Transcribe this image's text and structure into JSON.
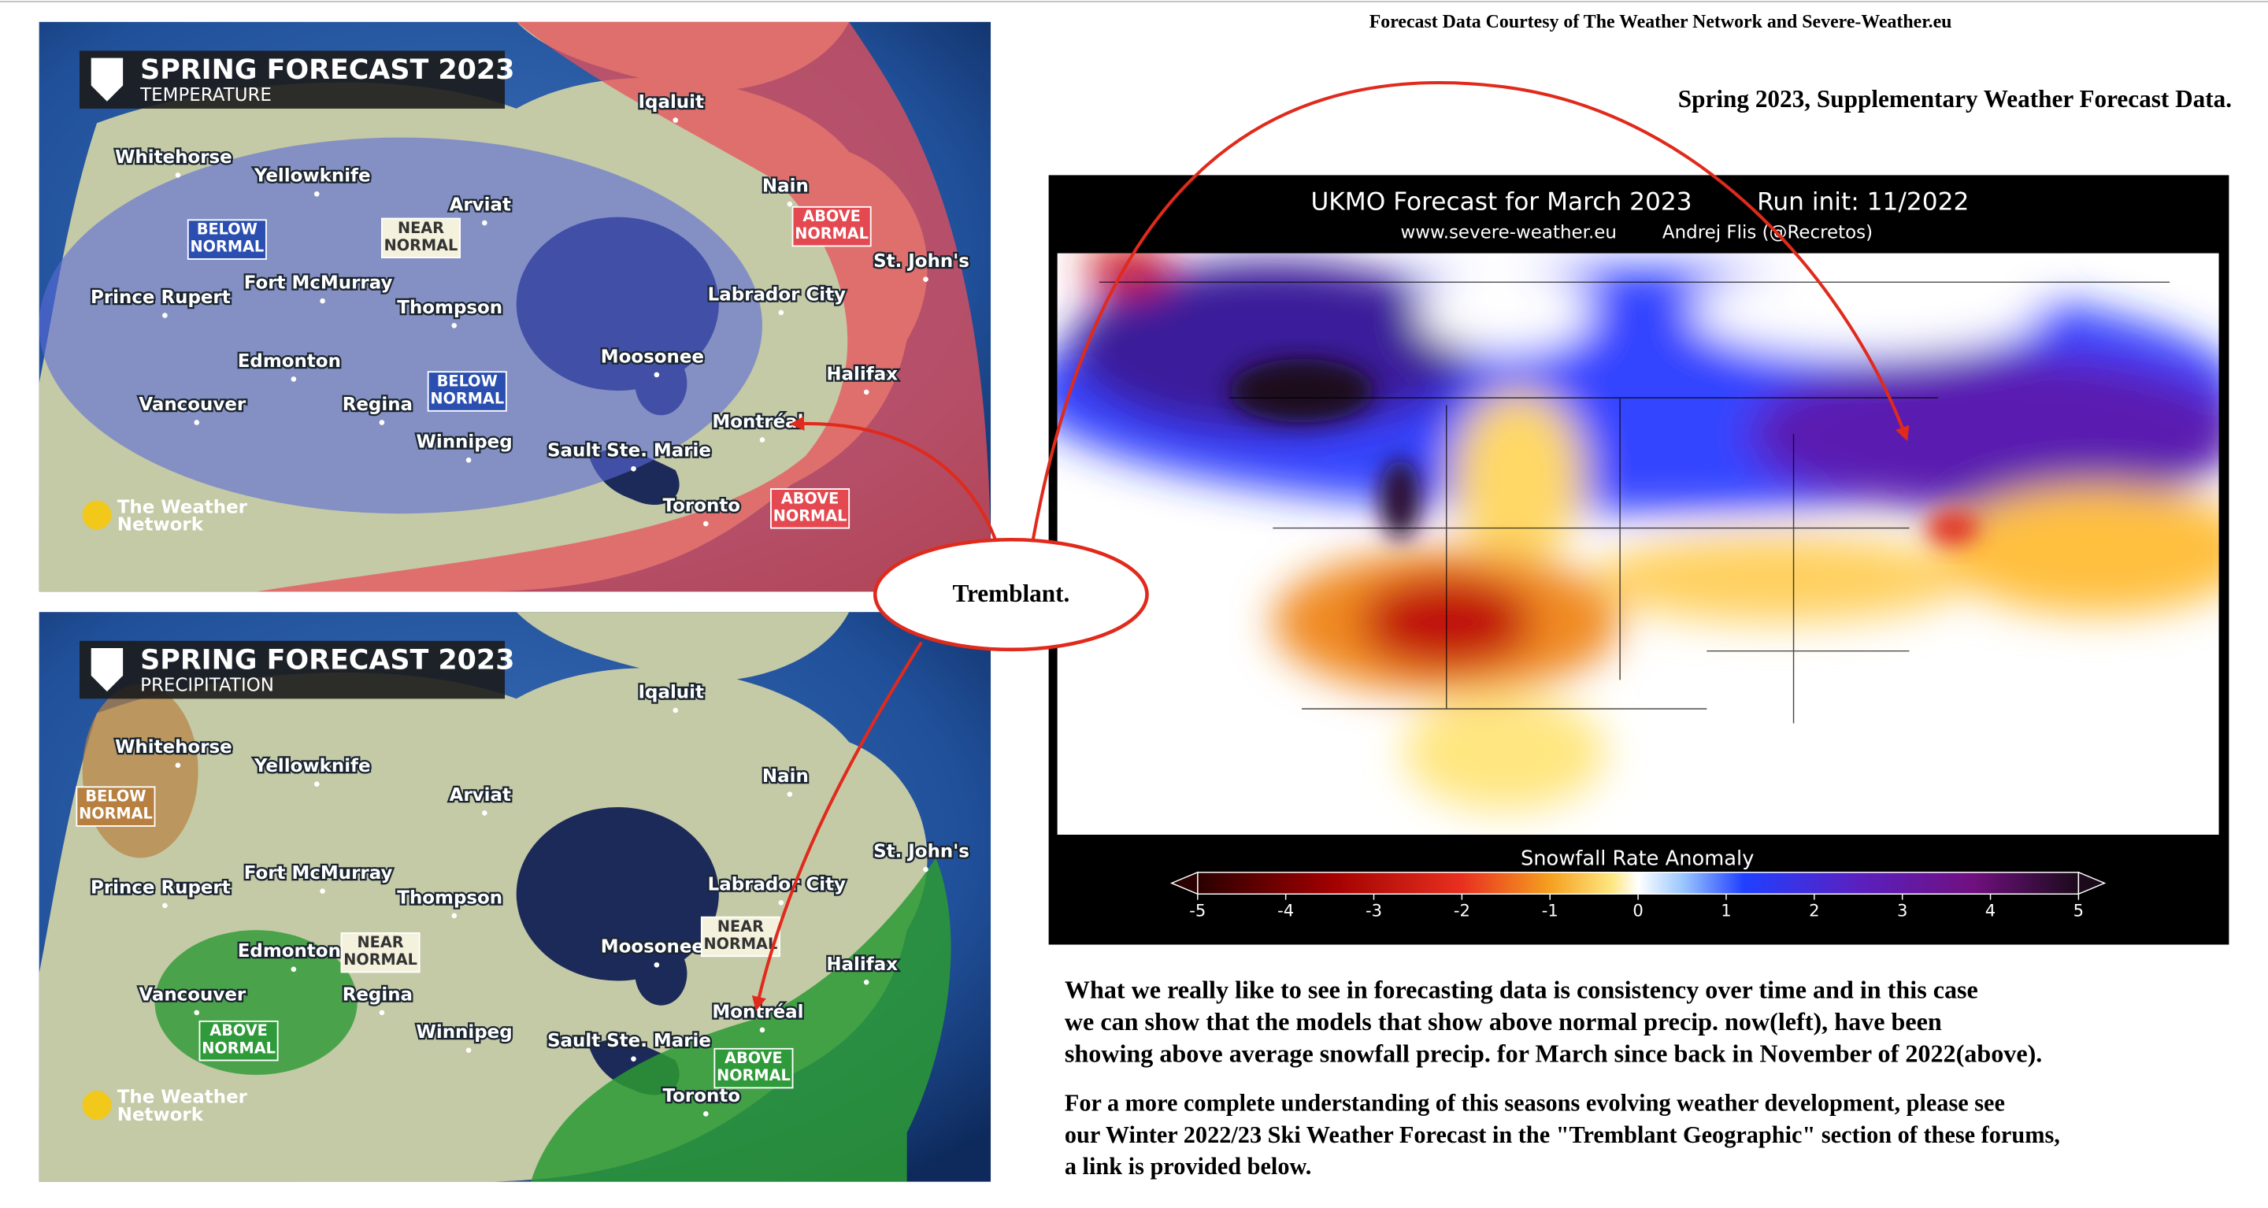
{
  "header": {
    "credit": "Forecast Data Courtesy of The Weather Network and Severe-Weather.eu",
    "subtitle": "Spring 2023, Supplementary Weather Forecast Data."
  },
  "maps": [
    {
      "title": "SPRING FORECAST 2023",
      "subtitle": "TEMPERATURE",
      "logo": [
        "The Weather",
        "Network"
      ],
      "cities": [
        "Iqaluit",
        "Whitehorse",
        "Yellowknife",
        "Arviat",
        "Nain",
        "St. John's",
        "Fort McMurray",
        "Prince Rupert",
        "Thompson",
        "Labrador City",
        "Edmonton",
        "Moosonee",
        "Halifax",
        "Vancouver",
        "Regina",
        "Winnipeg",
        "Montréal",
        "Sault Ste. Marie",
        "Toronto"
      ],
      "regions": [
        [
          "BELOW",
          "NORMAL"
        ],
        [
          "NEAR",
          "NORMAL"
        ],
        [
          "ABOVE",
          "NORMAL"
        ],
        [
          "BELOW",
          "NORMAL"
        ],
        [
          "ABOVE",
          "NORMAL"
        ]
      ]
    },
    {
      "title": "SPRING FORECAST 2023",
      "subtitle": "PRECIPITATION",
      "logo": [
        "The Weather",
        "Network"
      ],
      "cities": [
        "Iqaluit",
        "Whitehorse",
        "Yellowknife",
        "Arviat",
        "Nain",
        "St. John's",
        "Fort McMurray",
        "Prince Rupert",
        "Thompson",
        "Labrador City",
        "Edmonton",
        "Moosonee",
        "Halifax",
        "Vancouver",
        "Regina",
        "Winnipeg",
        "Montréal",
        "Sault Ste. Marie",
        "Toronto"
      ],
      "regions": [
        [
          "BELOW",
          "NORMAL"
        ],
        [
          "NEAR",
          "NORMAL"
        ],
        [
          "ABOVE",
          "NORMAL"
        ],
        [
          "NEAR",
          "NORMAL"
        ],
        [
          "ABOVE",
          "NORMAL"
        ]
      ]
    }
  ],
  "callout": "Tremblant.",
  "ukmo": {
    "title": "UKMO Forecast for  March 2023",
    "run": "Run init: 11/2022",
    "site": "www.severe-weather.eu",
    "author": "Andrej Flis (@Recretos)",
    "colorbar": {
      "title": "Snowfall Rate Anomaly",
      "ticks": [
        -5,
        -4,
        -3,
        -2,
        -1,
        0,
        1,
        2,
        3,
        4,
        5
      ]
    }
  },
  "text": {
    "paragraphs": [
      [
        "What we really like to see in forecasting data is consistency over time and in this case",
        "we can show that the models that show above normal precip. now(left), have been",
        "showing above average snowfall precip. for March since back in November of 2022(above)."
      ],
      [
        "For a more complete understanding of this seasons evolving weather development, please see",
        "our Winter 2022/23 Ski Weather Forecast in the \"Tremblant Geographic\" section of these forums,",
        "a link is provided below."
      ]
    ]
  }
}
